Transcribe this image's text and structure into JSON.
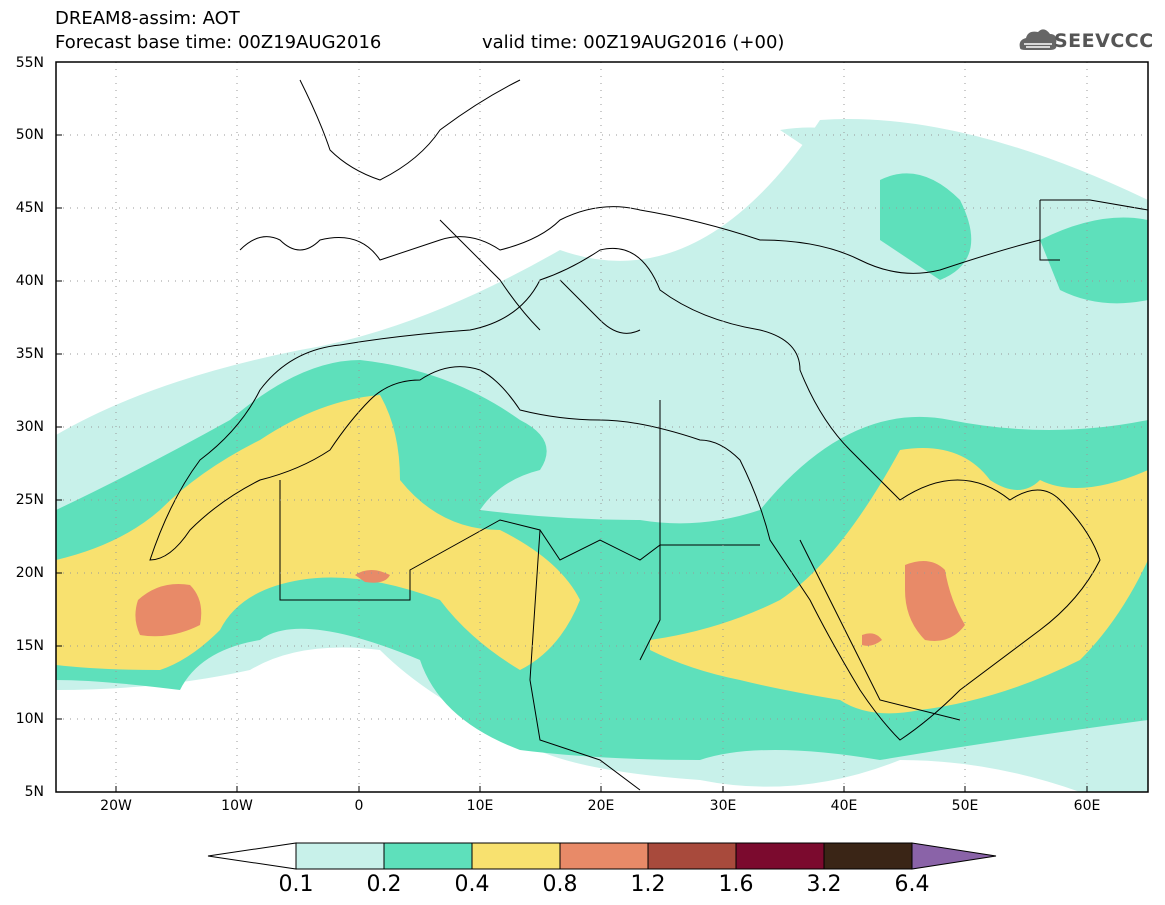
{
  "header": {
    "line1": "DREAM8-assim: AOT",
    "line2": "Forecast base time: 00Z19AUG2016",
    "line3": "valid time: 00Z19AUG2016 (+00)",
    "logo_text": "SEEVCCC"
  },
  "map": {
    "lon_range": [
      -25,
      65
    ],
    "lat_range": [
      5,
      55
    ],
    "lat_ticks": [
      "55N",
      "50N",
      "45N",
      "40N",
      "35N",
      "30N",
      "25N",
      "20N",
      "15N",
      "10N",
      "5N"
    ],
    "lon_ticks": [
      "20W",
      "10W",
      "0",
      "10E",
      "20E",
      "30E",
      "40E",
      "50E",
      "60E"
    ],
    "grid": true,
    "variable": "AOT"
  },
  "colorbar": {
    "labels": [
      "0.1",
      "0.2",
      "0.4",
      "0.8",
      "1.2",
      "1.6",
      "3.2",
      "6.4"
    ],
    "colors": [
      "#c8f1ea",
      "#5ee0bb",
      "#f8e16f",
      "#e88a68",
      "#a84a3c",
      "#7b0a2e",
      "#3a2516",
      "#8a63a8"
    ]
  }
}
